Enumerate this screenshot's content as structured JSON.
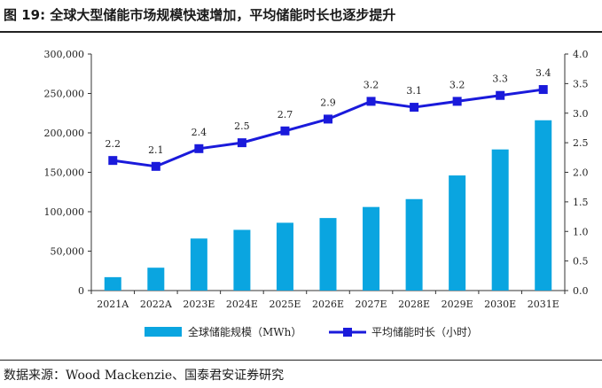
{
  "figure": {
    "title": "图 19:  全球大型储能市场规模快速增加，平均储能时长也逐步提升",
    "source": "数据来源：Wood Mackenzie、国泰君安证券研究"
  },
  "chart_data": {
    "type": "bar",
    "categories": [
      "2021A",
      "2022A",
      "2023E",
      "2024E",
      "2025E",
      "2026E",
      "2027E",
      "2028E",
      "2029E",
      "2030E",
      "2031E"
    ],
    "series": [
      {
        "name": "全球储能规模（MWh）",
        "type": "bar",
        "axis": "left",
        "values": [
          17000,
          29000,
          66000,
          77000,
          86000,
          92000,
          106000,
          116000,
          146000,
          179000,
          216000
        ]
      },
      {
        "name": "平均储能时长（小时）",
        "type": "line",
        "axis": "right",
        "values": [
          2.2,
          2.1,
          2.4,
          2.5,
          2.7,
          2.9,
          3.2,
          3.1,
          3.2,
          3.3,
          3.4
        ],
        "labels": [
          "2.2",
          "2.1",
          "2.4",
          "2.5",
          "2.7",
          "2.9",
          "3.2",
          "3.1",
          "3.2",
          "3.3",
          "3.4"
        ]
      }
    ],
    "y_left": {
      "lim": [
        0,
        300000
      ],
      "ticks": [
        "0",
        "50,000",
        "100,000",
        "150,000",
        "200,000",
        "250,000",
        "300,000"
      ]
    },
    "y_right": {
      "lim": [
        0,
        4.0
      ],
      "ticks": [
        "0.0",
        "0.5",
        "1.0",
        "1.5",
        "2.0",
        "2.5",
        "3.0",
        "3.5",
        "4.0"
      ]
    },
    "legend": "bottom",
    "grid": false,
    "colors": {
      "bar": "#0aa5e0",
      "line": "#1a1adb"
    }
  }
}
